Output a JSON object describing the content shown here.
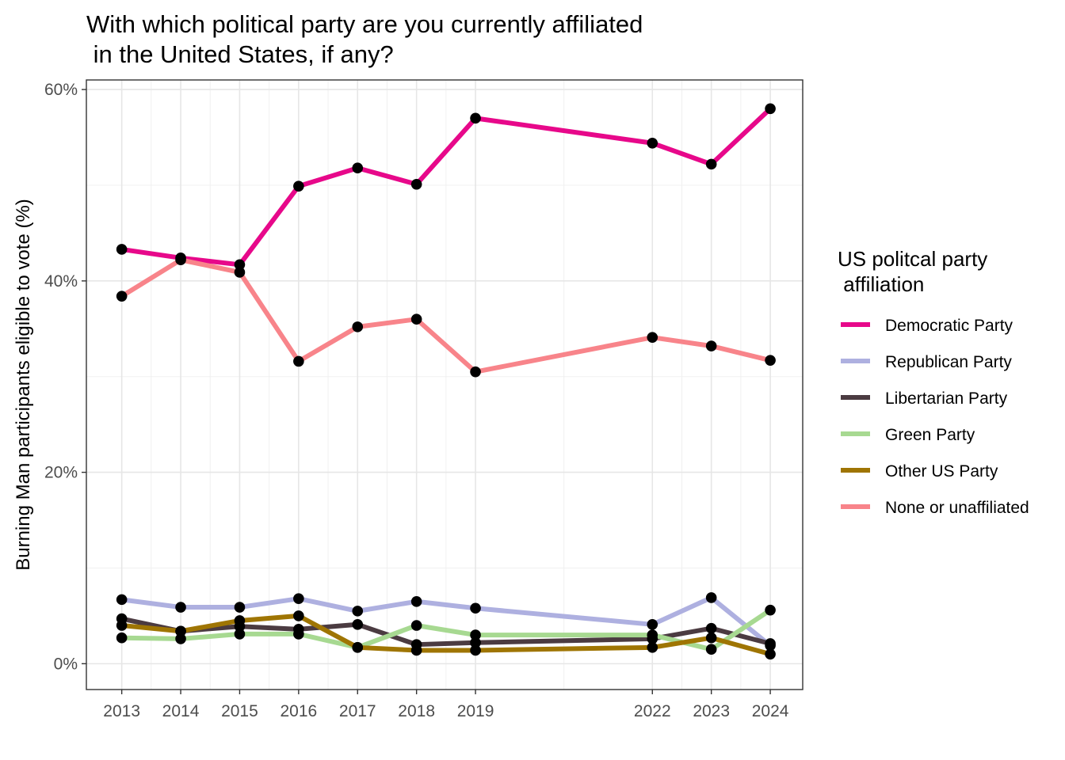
{
  "chart_data": {
    "type": "line",
    "title_lines": [
      "With which political party are you currently affiliated",
      " in the United States, if any?"
    ],
    "xlabel": "",
    "ylabel": "Burning Man participants eligible to vote (%)",
    "x": [
      2013,
      2014,
      2015,
      2016,
      2017,
      2018,
      2019,
      2022,
      2023,
      2024
    ],
    "x_tick_labels": [
      "2013",
      "2014",
      "2015",
      "2016",
      "2017",
      "2018",
      "2019",
      "2022",
      "2023",
      "2024"
    ],
    "xlim": [
      2012.4,
      2024.55
    ],
    "ylim": [
      -2.7,
      61
    ],
    "y_ticks": [
      0,
      20,
      40,
      60
    ],
    "y_tick_labels": [
      "0%",
      "20%",
      "40%",
      "60%"
    ],
    "grid": true,
    "legend": {
      "title_lines": [
        "US politcal party",
        " affiliation"
      ],
      "placement": "right"
    },
    "series": [
      {
        "name": "Democratic Party",
        "color": "#e7088a",
        "values": [
          43.3,
          42.4,
          41.7,
          49.9,
          51.8,
          50.1,
          57.0,
          54.4,
          52.2,
          58.0
        ]
      },
      {
        "name": "Republican Party",
        "color": "#aeb0e0",
        "values": [
          6.7,
          5.9,
          5.9,
          6.8,
          5.5,
          6.5,
          5.8,
          4.1,
          6.9,
          1.9
        ]
      },
      {
        "name": "Libertarian Party",
        "color": "#4b3b41",
        "values": [
          4.7,
          3.4,
          3.9,
          3.6,
          4.1,
          2.0,
          2.2,
          2.6,
          3.7,
          2.1
        ]
      },
      {
        "name": "Green Party",
        "color": "#a7d991",
        "values": [
          2.7,
          2.6,
          3.1,
          3.1,
          1.7,
          4.0,
          3.0,
          3.0,
          1.5,
          5.6
        ]
      },
      {
        "name": "Other US Party",
        "color": "#9f7503",
        "values": [
          4.0,
          3.4,
          4.5,
          5.0,
          1.7,
          1.4,
          1.4,
          1.7,
          2.7,
          1.0
        ]
      },
      {
        "name": "None or unaffiliated",
        "color": "#f8848a",
        "values": [
          38.4,
          42.2,
          40.9,
          31.6,
          35.2,
          36.0,
          30.5,
          34.1,
          33.2,
          31.7
        ]
      }
    ]
  }
}
